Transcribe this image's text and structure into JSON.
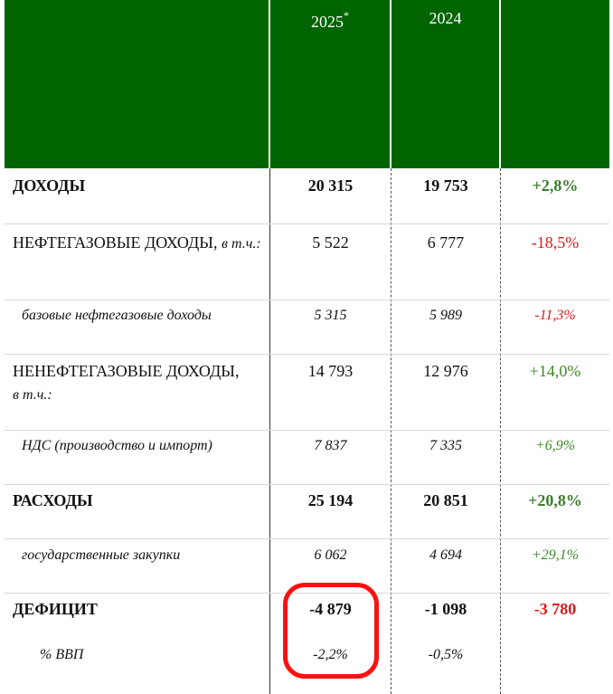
{
  "header": {
    "year_current": "2025",
    "year_current_mark": "*",
    "year_prev": "2024"
  },
  "rows": [
    {
      "label": "ДОХОДЫ",
      "v2025": "20 315",
      "v2024": "19 753",
      "change": "+2,8%"
    },
    {
      "label": "НЕФТЕГАЗОВЫЕ ДОХОДЫ,",
      "label_note": "в т.ч.:",
      "v2025": "5 522",
      "v2024": "6 777",
      "change": "-18,5%"
    },
    {
      "label": "базовые нефтегазовые доходы",
      "v2025": "5 315",
      "v2024": "5 989",
      "change": "-11,3%"
    },
    {
      "label": "НЕНЕФТЕГАЗОВЫЕ ДОХОДЫ,",
      "label_note": "в т.ч.:",
      "v2025": "14 793",
      "v2024": "12 976",
      "change": "+14,0%"
    },
    {
      "label": "НДС (производство и импорт)",
      "v2025": "7 837",
      "v2024": "7 335",
      "change": "+6,9%"
    },
    {
      "label": "РАСХОДЫ",
      "v2025": "25 194",
      "v2024": "20 851",
      "change": "+20,8%"
    },
    {
      "label": "государственные закупки",
      "v2025": "6 062",
      "v2024": "4 694",
      "change": "+29,1%"
    },
    {
      "label": "ДЕФИЦИТ",
      "v2025": "-4 879",
      "v2024": "-1 098",
      "change": "-3 780"
    },
    {
      "label": "% ВВП",
      "v2025": "-2,2%",
      "v2024": "-0,5%"
    }
  ],
  "colors": {
    "header_bg": "#006400",
    "positive": "#3f8a2a",
    "negative": "#e0181a",
    "highlight": "#ff1010"
  }
}
